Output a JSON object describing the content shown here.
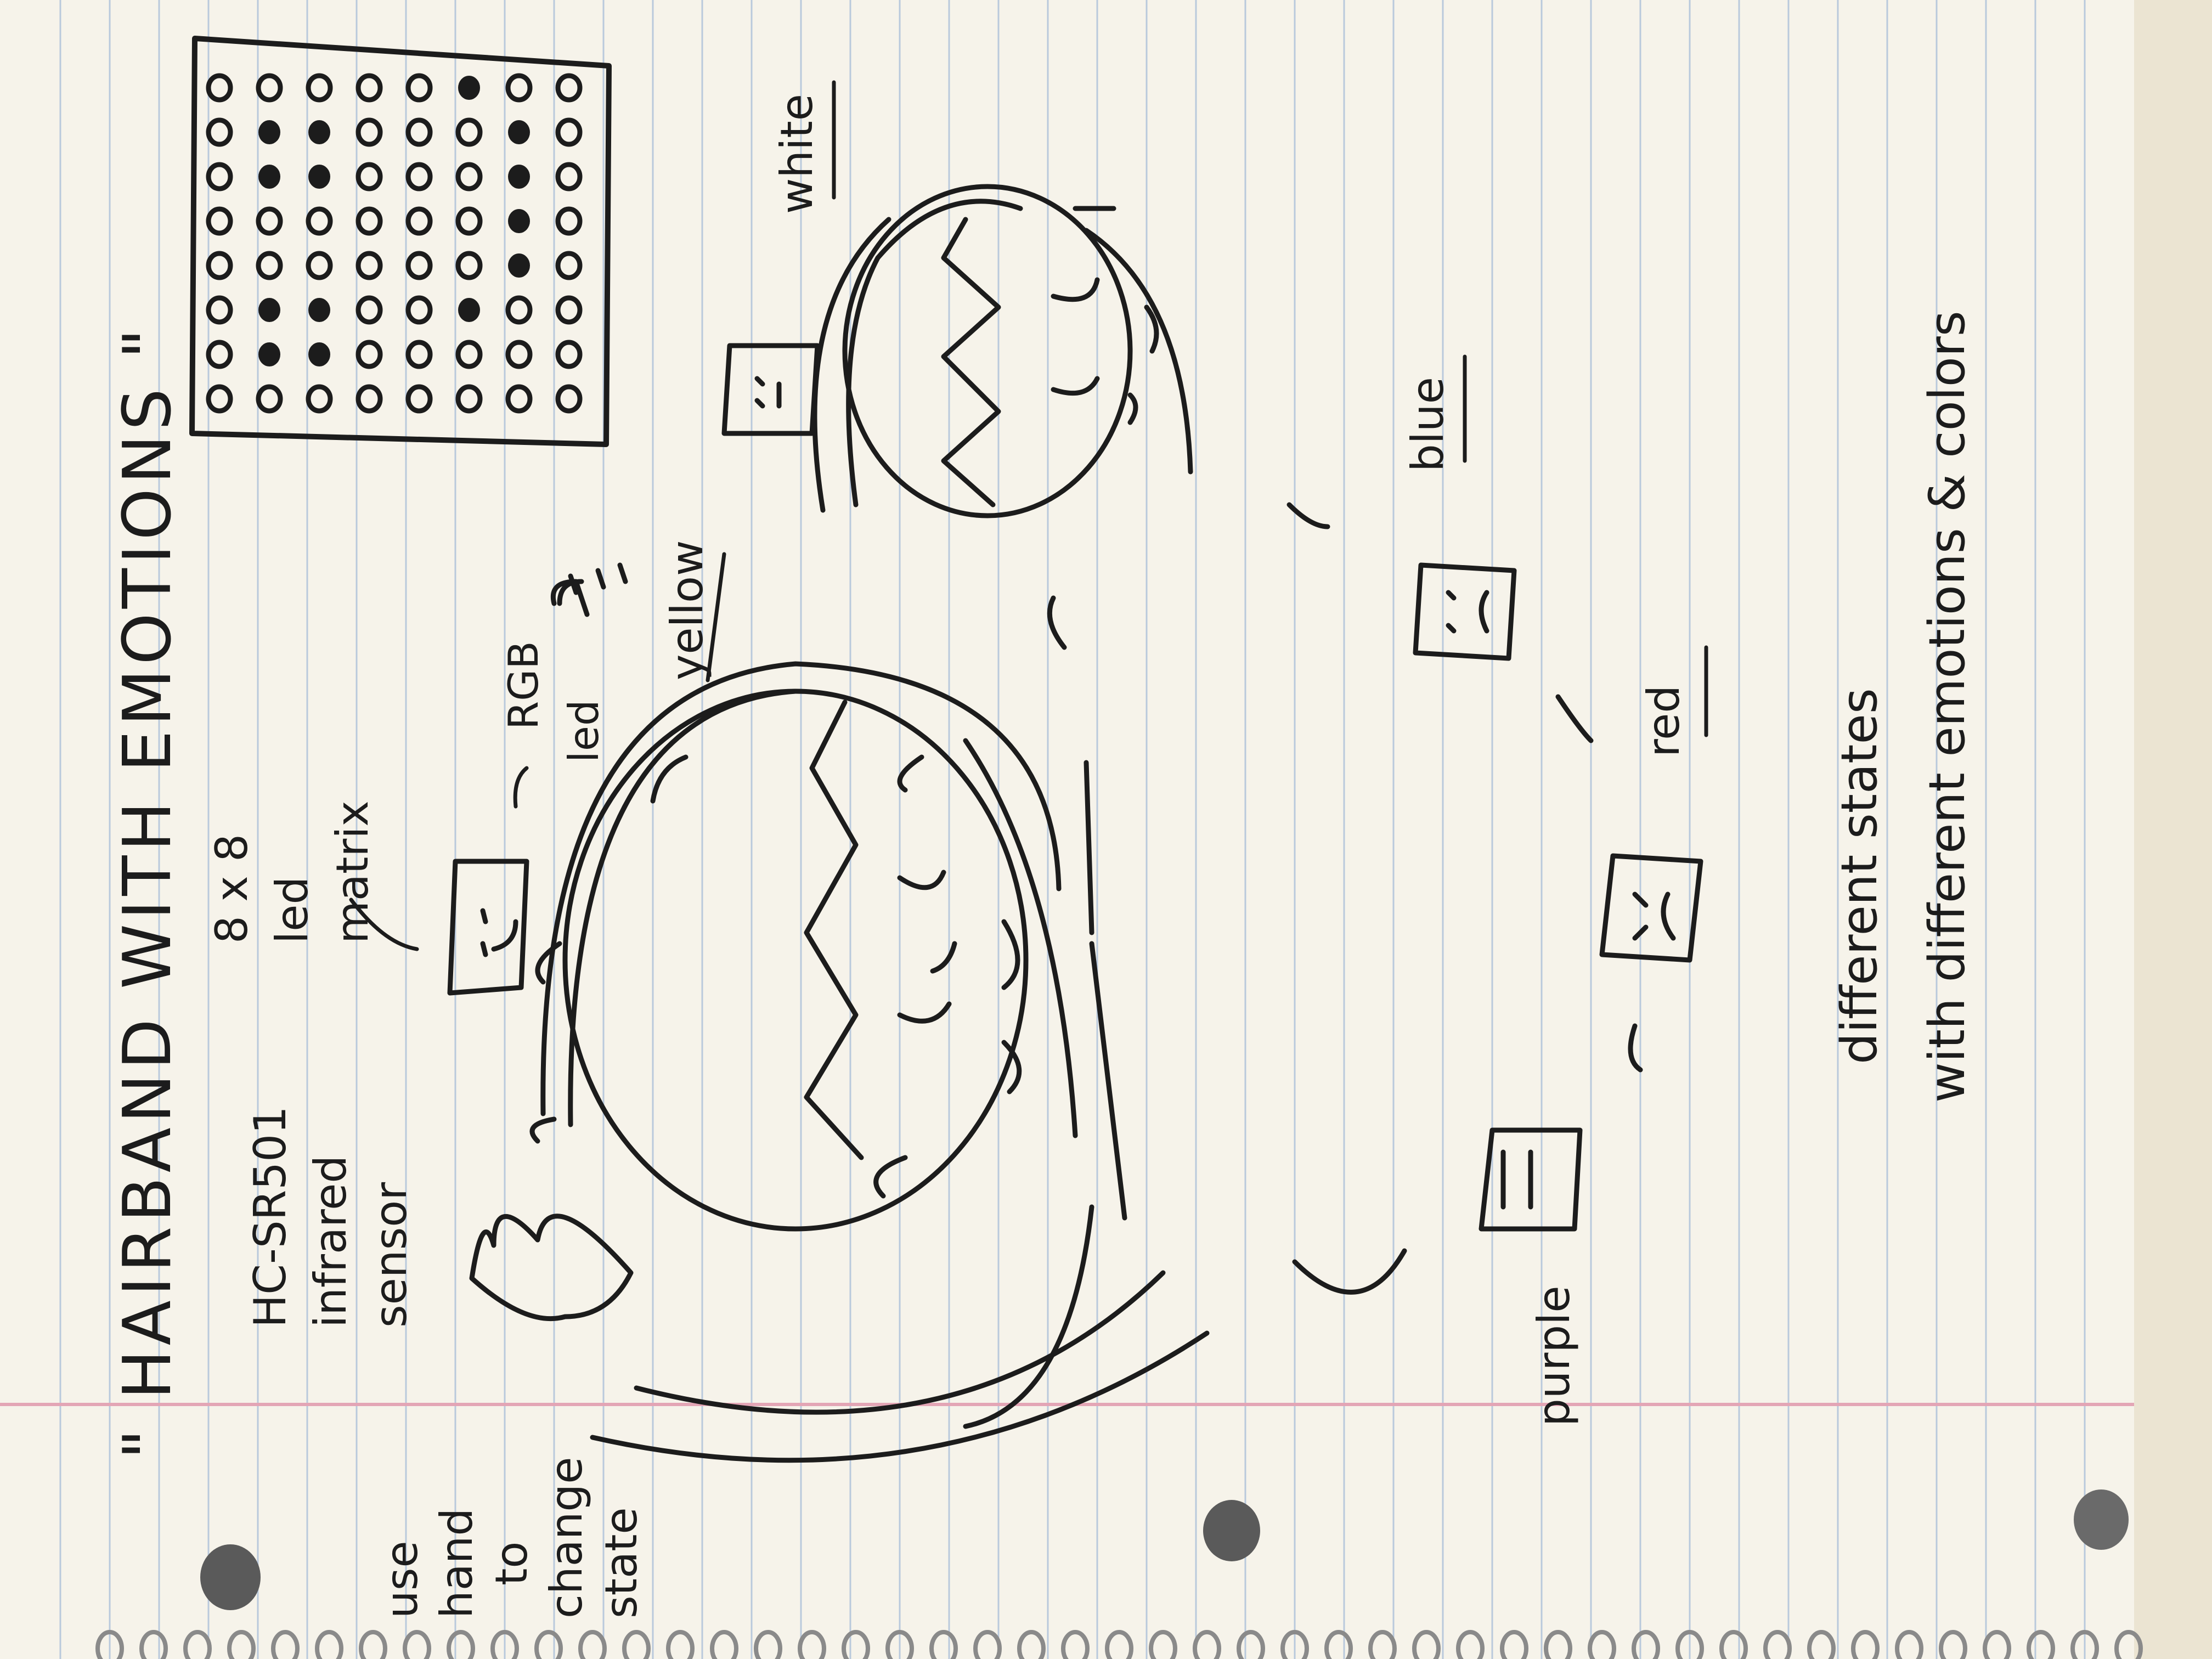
{
  "page": {
    "title": "\" HAIRBAND WITH EMOTIONS \"",
    "labels": {
      "matrix": [
        "8 x 8",
        "led",
        "matrix"
      ],
      "sensor": [
        "HC-SR501",
        "infrared",
        "sensor"
      ],
      "rgb": [
        "RGB",
        "led"
      ],
      "hand": [
        "use",
        "hand",
        "to",
        "change",
        "state"
      ]
    },
    "colors": {
      "yellow": "yellow",
      "white": "white",
      "blue": "blue",
      "red": "red",
      "purple": "purple"
    },
    "note": [
      "different states",
      "with different emotions & colors"
    ],
    "matrix_pattern": [
      "00000000",
      "01100110",
      "01100110",
      "00000000",
      "00000000",
      "00100001",
      "00011110",
      "00000000"
    ]
  },
  "theme": {
    "paper": "#f6f3ea",
    "ink": "#1c1c1c",
    "rule_line": "#b9c9dc",
    "margin_line": "#e3a5b5",
    "background": "#e9e6df"
  }
}
